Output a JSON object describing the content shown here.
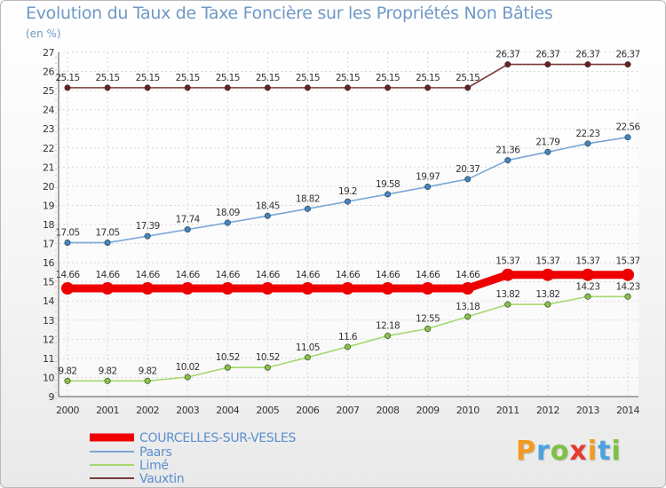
{
  "title": "Evolution du Taux de Taxe Foncière sur les Propriétés Non Bâties",
  "unit": "(en %)",
  "logo": {
    "text": "Proxiti",
    "letters": [
      {
        "ch": "P",
        "color": "#f39a21"
      },
      {
        "ch": "r",
        "color": "#4aa3df"
      },
      {
        "ch": "o",
        "color": "#7dc242"
      },
      {
        "ch": "x",
        "color": "#e63a2e"
      },
      {
        "ch": "i",
        "color": "#f39a21"
      },
      {
        "ch": "t",
        "color": "#4aa3df"
      },
      {
        "ch": "i",
        "color": "#7dc242"
      }
    ]
  },
  "chart_data": {
    "type": "line",
    "title": "Evolution du Taux de Taxe Foncière sur les Propriétés Non Bâties",
    "ylabel": "(en %)",
    "xlabel": "",
    "ylim": [
      9,
      27
    ],
    "yticks": [
      9,
      10,
      11,
      12,
      13,
      14,
      15,
      16,
      17,
      18,
      19,
      20,
      21,
      22,
      23,
      24,
      25,
      26,
      27
    ],
    "grid": true,
    "legend_position": "bottom-left",
    "categories": [
      "2000",
      "2001",
      "2002",
      "2003",
      "2004",
      "2005",
      "2006",
      "2007",
      "2008",
      "2009",
      "2010",
      "2011",
      "2012",
      "2013",
      "2014"
    ],
    "series": [
      {
        "name": "COURCELLES-SUR-VESLES",
        "color": "#ee0000",
        "marker": "#ee0000",
        "style": "thick",
        "values": [
          14.66,
          14.66,
          14.66,
          14.66,
          14.66,
          14.66,
          14.66,
          14.66,
          14.66,
          14.66,
          14.66,
          15.37,
          15.37,
          15.37,
          15.37
        ],
        "labels": [
          "14.66",
          "14.66",
          "14.66",
          "14.66",
          "14.66",
          "14.66",
          "14.66",
          "14.66",
          "14.66",
          "14.66",
          "14.66",
          "15.37",
          "15.37",
          "15.37",
          "15.37"
        ]
      },
      {
        "name": "Paars",
        "color": "#7ba7d7",
        "marker": "#3f86c6",
        "style": "thin",
        "values": [
          17.05,
          17.05,
          17.39,
          17.74,
          18.09,
          18.45,
          18.82,
          19.2,
          19.58,
          19.97,
          20.37,
          21.36,
          21.79,
          22.23,
          22.56
        ],
        "labels": [
          "17.05",
          "17.05",
          "17.39",
          "17.74",
          "18.09",
          "18.45",
          "18.82",
          "19.2",
          "19.58",
          "19.97",
          "20.37",
          "21.36",
          "21.79",
          "22.23",
          "22.56"
        ]
      },
      {
        "name": "Limé",
        "color": "#a6d86e",
        "marker": "#86c440",
        "style": "thin",
        "values": [
          9.82,
          9.82,
          9.82,
          10.02,
          10.52,
          10.52,
          11.05,
          11.6,
          12.18,
          12.55,
          13.18,
          13.82,
          13.82,
          14.23,
          14.23
        ],
        "labels": [
          "9.82",
          "9.82",
          "9.82",
          "10.02",
          "10.52",
          "10.52",
          "11.05",
          "11.6",
          "12.18",
          "12.55",
          "13.18",
          "13.82",
          "13.82",
          "14.23",
          "14.23"
        ]
      },
      {
        "name": "Vauxtin",
        "color": "#7a3a3a",
        "marker": "#6b2020",
        "style": "thin",
        "values": [
          25.15,
          25.15,
          25.15,
          25.15,
          25.15,
          25.15,
          25.15,
          25.15,
          25.15,
          25.15,
          25.15,
          26.37,
          26.37,
          26.37,
          26.37
        ],
        "labels": [
          "25.15",
          "25.15",
          "25.15",
          "25.15",
          "25.15",
          "25.15",
          "25.15",
          "25.15",
          "25.15",
          "25.15",
          "25.15",
          "26.37",
          "26.37",
          "26.37",
          "26.37"
        ]
      }
    ]
  }
}
